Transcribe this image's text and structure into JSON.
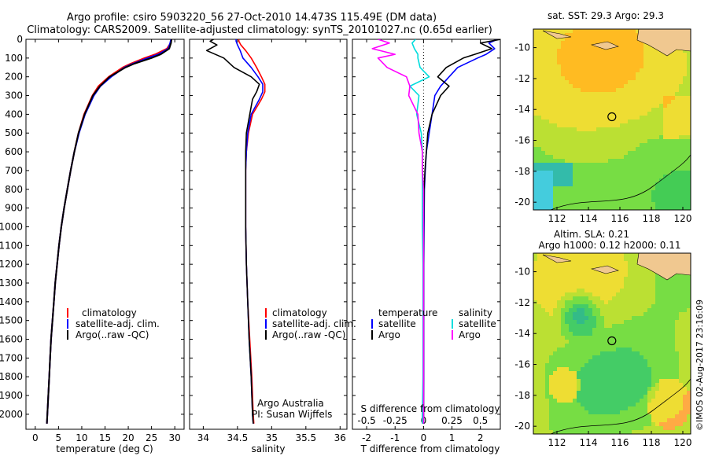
{
  "title": {
    "line1": "Argo profile: csiro 5903220_56 27-Oct-2010 14.473S 115.49E (DM data)",
    "line2": "Climatology: CARS2009. Satellite-adjusted climatology: synTS_20101027.nc (0.65d earlier)"
  },
  "footer": "©IMOS 02-Aug-2017 23:16:09",
  "colors": {
    "climatology": "#ff0000",
    "satellite": "#0000ff",
    "argo": "#000000",
    "sal_sat": "#00dddd",
    "sal_argo": "#ff00ff"
  },
  "panel_labels": {
    "argo_australia": "Argo Australia",
    "pi": "PI: Susan Wijffels"
  },
  "legends": {
    "temperature": [
      "climatology",
      "satellite-adj. clim.",
      "Argo(..raw -QC)"
    ],
    "salinity": [
      "climatology",
      "satellite-adj. clim.",
      "Argo(..raw -QC)"
    ],
    "diff_temp_head": "temperature",
    "diff_sal_head": "salinity",
    "diff_temp": [
      "satellite",
      "Argo"
    ],
    "diff_sal": [
      "satellite",
      "Argo"
    ]
  },
  "maps": {
    "sst_title": "sat. SST: 29.3  Argo: 29.3",
    "sla_title1": "Altim. SLA: 0.21",
    "sla_title2": "Argo h1000: 0.12 h2000: 0.11"
  },
  "chart_data": [
    {
      "type": "line",
      "name": "temperature",
      "xlabel": "temperature (deg C)",
      "xlim": [
        -2,
        32
      ],
      "xticks": [
        0,
        5,
        10,
        15,
        20,
        25,
        30
      ],
      "ylim": [
        0,
        2080
      ],
      "yticks": [
        0,
        100,
        200,
        300,
        400,
        500,
        600,
        700,
        800,
        900,
        1000,
        1100,
        1200,
        1300,
        1400,
        1500,
        1600,
        1700,
        1800,
        1900,
        2000
      ],
      "y": [
        0,
        20,
        50,
        80,
        100,
        130,
        150,
        200,
        250,
        300,
        400,
        500,
        600,
        700,
        800,
        900,
        1000,
        1100,
        1200,
        1300,
        1400,
        1500,
        1600,
        1700,
        1800,
        1900,
        2000,
        2050
      ],
      "series": [
        {
          "name": "climatology",
          "values": [
            29.3,
            29.1,
            28.3,
            25.8,
            23.5,
            20.5,
            18.8,
            15.8,
            13.6,
            12.3,
            10.5,
            9.3,
            8.4,
            7.6,
            6.9,
            6.2,
            5.6,
            5.1,
            4.7,
            4.3,
            4.0,
            3.7,
            3.4,
            3.2,
            3.0,
            2.8,
            2.6,
            2.5
          ]
        },
        {
          "name": "satellite-adj. clim.",
          "values": [
            29.2,
            29.0,
            28.6,
            26.5,
            24.2,
            21.0,
            19.2,
            16.3,
            14.0,
            12.6,
            10.7,
            9.4,
            8.4,
            7.6,
            6.9,
            6.2,
            5.6,
            5.1,
            4.7,
            4.3,
            4.0,
            3.7,
            3.4,
            3.2,
            3.0,
            2.8,
            2.6,
            2.5
          ]
        },
        {
          "name": "Argo(..raw -QC)",
          "values": [
            29.3,
            29.2,
            28.8,
            27.0,
            25.0,
            21.3,
            19.4,
            16.0,
            13.9,
            12.4,
            10.6,
            9.3,
            8.4,
            7.6,
            6.9,
            6.2,
            5.6,
            5.1,
            4.7,
            4.3,
            4.0,
            3.7,
            3.4,
            3.2,
            3.0,
            2.8,
            2.6,
            2.5
          ]
        }
      ]
    },
    {
      "type": "line",
      "name": "salinity",
      "xlabel": "salinity",
      "xlim": [
        33.8,
        36.1
      ],
      "xticks": [
        34,
        34.5,
        35,
        35.5,
        36
      ],
      "ylim": [
        0,
        2080
      ],
      "yticks": [
        0,
        100,
        200,
        300,
        400,
        500,
        600,
        700,
        800,
        900,
        1000,
        1100,
        1200,
        1300,
        1400,
        1500,
        1600,
        1700,
        1800,
        1900,
        2000
      ],
      "y": [
        0,
        10,
        30,
        60,
        100,
        150,
        200,
        240,
        280,
        320,
        400,
        500,
        600,
        700,
        800,
        1000,
        1200,
        1400,
        1600,
        1800,
        2000,
        2050
      ],
      "series": [
        {
          "name": "climatology",
          "values": [
            34.52,
            34.52,
            34.55,
            34.62,
            34.7,
            34.78,
            34.85,
            34.9,
            34.9,
            34.85,
            34.72,
            34.66,
            34.63,
            34.62,
            34.62,
            34.62,
            34.63,
            34.65,
            34.68,
            34.71,
            34.73,
            34.74
          ]
        },
        {
          "name": "satellite-adj. clim.",
          "values": [
            34.48,
            34.48,
            34.5,
            34.54,
            34.58,
            34.7,
            34.8,
            34.87,
            34.87,
            34.82,
            34.7,
            34.65,
            34.63,
            34.62,
            34.62,
            34.62,
            34.63,
            34.65,
            34.67,
            34.7,
            34.72,
            34.73
          ]
        },
        {
          "name": "Argo(..raw -QC)",
          "values": [
            34.15,
            34.1,
            34.2,
            34.05,
            34.3,
            34.45,
            34.7,
            34.82,
            34.78,
            34.72,
            34.68,
            34.63,
            34.62,
            34.62,
            34.62,
            34.62,
            34.63,
            34.65,
            34.67,
            34.7,
            34.72,
            34.73
          ]
        }
      ]
    },
    {
      "type": "line",
      "name": "difference",
      "xlabel_top": "S difference from climatology",
      "xlabel": "T difference from climatology",
      "xlim": [
        -2.5,
        2.7
      ],
      "xticks": [
        -2,
        -1,
        0,
        1,
        2
      ],
      "top_ticks": [
        -0.5,
        -0.25,
        0,
        0.25,
        0.5
      ],
      "top_tick_labels": [
        "-0.5",
        "-0.25",
        "0",
        "0.25",
        "0.5"
      ],
      "ylim": [
        0,
        2080
      ],
      "yticks": [
        0,
        100,
        200,
        300,
        400,
        500,
        600,
        700,
        800,
        900,
        1000,
        1100,
        1200,
        1300,
        1400,
        1500,
        1600,
        1700,
        1800,
        1900,
        2000
      ],
      "y": [
        0,
        20,
        50,
        80,
        100,
        150,
        200,
        250,
        300,
        400,
        500,
        600,
        700,
        800,
        1000,
        1200,
        1500,
        1800,
        2000,
        2050
      ],
      "series": [
        {
          "name": "temperature satellite",
          "values": [
            2.6,
            2.3,
            2.5,
            2.2,
            1.9,
            1.2,
            0.9,
            0.6,
            0.4,
            0.3,
            0.2,
            0.1,
            0.06,
            0.03,
            0.02,
            0.01,
            0.01,
            0.01,
            0.0,
            0.0
          ]
        },
        {
          "name": "temperature Argo",
          "values": [
            2.7,
            2.0,
            2.4,
            1.8,
            1.4,
            0.8,
            0.5,
            0.9,
            0.6,
            0.3,
            0.15,
            0.1,
            0.05,
            0.02,
            0.01,
            0.0,
            0.0,
            0.0,
            0.0,
            0.0
          ]
        },
        {
          "name": "salinity satellite",
          "values": [
            -0.07,
            -0.1,
            -0.08,
            -0.05,
            -0.05,
            -0.03,
            0.05,
            -0.12,
            -0.04,
            -0.06,
            -0.02,
            -0.01,
            -0.01,
            -0.01,
            -0.01,
            -0.005,
            -0.005,
            -0.005,
            -0.01,
            -0.01
          ]
        },
        {
          "name": "salinity Argo",
          "values": [
            -0.4,
            -0.3,
            -0.45,
            -0.25,
            -0.4,
            -0.32,
            -0.15,
            -0.12,
            -0.13,
            -0.05,
            -0.04,
            -0.01,
            -0.01,
            0.0,
            0.0,
            0.0,
            0.0,
            0.0,
            0.0,
            0.0
          ]
        }
      ]
    },
    {
      "type": "heatmap",
      "name": "SST map",
      "xlim": [
        110.5,
        120.5
      ],
      "ylim": [
        -20.5,
        -8.8
      ],
      "xticks": [
        112,
        114,
        116,
        118,
        120
      ],
      "yticks": [
        -10,
        -12,
        -14,
        -16,
        -18,
        -20
      ],
      "marker": {
        "x": 115.49,
        "y": -14.473
      }
    },
    {
      "type": "heatmap",
      "name": "SLA map",
      "xlim": [
        110.5,
        120.5
      ],
      "ylim": [
        -20.5,
        -8.8
      ],
      "xticks": [
        112,
        114,
        116,
        118,
        120
      ],
      "yticks": [
        -10,
        -12,
        -14,
        -16,
        -18,
        -20
      ],
      "marker": {
        "x": 115.49,
        "y": -14.473
      }
    }
  ]
}
